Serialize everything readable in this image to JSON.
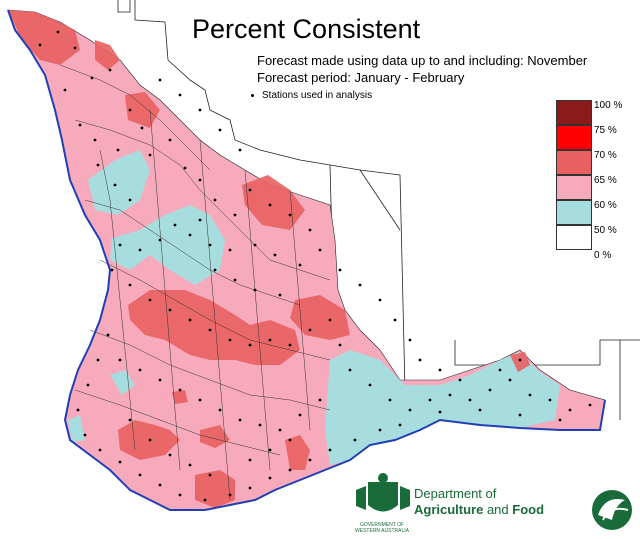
{
  "title": "Percent Consistent",
  "forecast_made": "Forecast made using data up to and including: November",
  "forecast_period": "Forecast period: January - February",
  "stations_label": "Stations used in analysis",
  "legend": [
    {
      "label": "100 %",
      "color": "#8b1a1a"
    },
    {
      "label": "75 %",
      "color": "#ff0000"
    },
    {
      "label": "70 %",
      "color": "#e86060"
    },
    {
      "label": "65 %",
      "color": "#f7aabc"
    },
    {
      "label": "60 %",
      "color": "#a8dde0"
    },
    {
      "label": "50 %",
      "color": "#ffffff"
    },
    {
      "label": "0 %",
      "color": ""
    }
  ],
  "department": {
    "line1": "Department of",
    "line2a": "Agriculture",
    "line2b": " and ",
    "line2c": "Food"
  },
  "government": {
    "line1": "GOVERNMENT OF",
    "line2": "WESTERN AUSTRALIA"
  },
  "colors": {
    "coast": "#1f3fb3",
    "boundary": "#222222",
    "zone_65": "#f7aabc",
    "zone_70": "#e86060",
    "zone_60": "#a8dde0",
    "brand_green": "#1a6b3a"
  }
}
